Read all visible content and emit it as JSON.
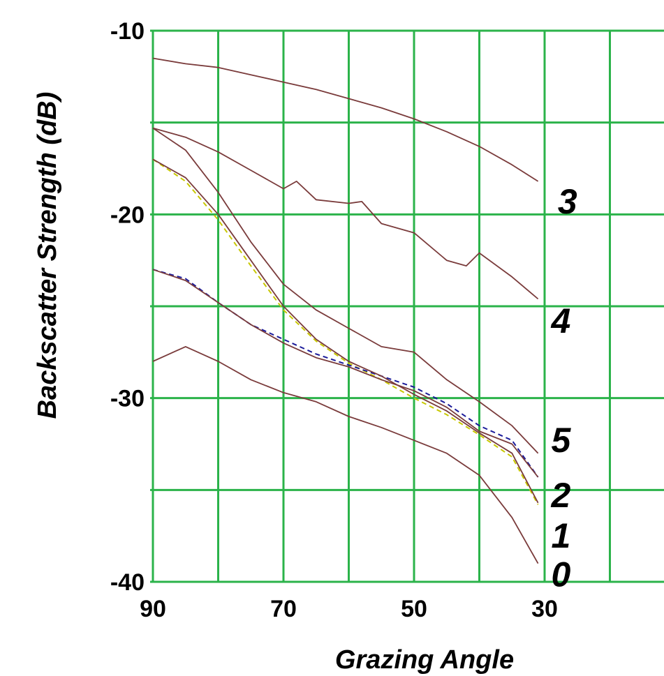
{
  "chart_data": {
    "type": "line",
    "title": "",
    "xlabel": "Grazing Angle",
    "ylabel": "Backscatter Strength (dB)",
    "xlim": [
      90,
      30
    ],
    "ylim": [
      -40,
      -10
    ],
    "x_ticks": [
      "90",
      "70",
      "50",
      "30"
    ],
    "y_ticks": [
      "-10",
      "-20",
      "-30",
      "-40"
    ],
    "grid": true,
    "colors": {
      "grid": "#2bb34a",
      "series": "#7a3b3b",
      "fit_yellow": "#c8c800",
      "fit_blue": "#1a1a9a"
    },
    "series": [
      {
        "name": "3",
        "x": [
          90,
          85,
          80,
          75,
          70,
          65,
          60,
          55,
          50,
          45,
          40,
          35,
          31
        ],
        "y": [
          -11.5,
          -11.8,
          -12.0,
          -12.4,
          -12.8,
          -13.2,
          -13.7,
          -14.2,
          -14.8,
          -15.5,
          -16.3,
          -17.3,
          -18.2
        ]
      },
      {
        "name": "4",
        "x": [
          90,
          85,
          80,
          75,
          70,
          68,
          65,
          60,
          58,
          55,
          50,
          45,
          42,
          40,
          35,
          31
        ],
        "y": [
          -15.3,
          -15.8,
          -16.6,
          -17.6,
          -18.6,
          -18.2,
          -19.2,
          -19.4,
          -19.3,
          -20.5,
          -21.0,
          -22.5,
          -22.8,
          -22.1,
          -23.4,
          -24.6
        ]
      },
      {
        "name": "5",
        "x": [
          90,
          85,
          80,
          75,
          70,
          65,
          60,
          55,
          50,
          45,
          40,
          35,
          31
        ],
        "y": [
          -15.3,
          -16.5,
          -18.8,
          -21.5,
          -23.8,
          -25.2,
          -26.2,
          -27.2,
          -27.5,
          -29.0,
          -30.2,
          -31.5,
          -33.0
        ]
      },
      {
        "name": "2",
        "x": [
          90,
          85,
          80,
          75,
          70,
          65,
          60,
          55,
          50,
          45,
          40,
          35,
          31
        ],
        "y": [
          -23.0,
          -23.6,
          -24.8,
          -26.0,
          -27.0,
          -27.8,
          -28.3,
          -29.0,
          -29.6,
          -30.5,
          -31.8,
          -32.5,
          -34.3
        ]
      },
      {
        "name": "1",
        "x": [
          90,
          85,
          80,
          75,
          70,
          65,
          60,
          55,
          50,
          45,
          40,
          35,
          31
        ],
        "y": [
          -17.0,
          -18.0,
          -20.0,
          -22.5,
          -25.0,
          -26.8,
          -28.0,
          -28.8,
          -29.8,
          -30.7,
          -31.9,
          -33.0,
          -35.7
        ]
      },
      {
        "name": "0",
        "x": [
          90,
          85,
          80,
          75,
          70,
          65,
          60,
          55,
          50,
          45,
          40,
          35,
          31
        ],
        "y": [
          -28.0,
          -27.2,
          -28.0,
          -29.0,
          -29.7,
          -30.2,
          -31.0,
          -31.6,
          -32.3,
          -33.0,
          -34.2,
          -36.5,
          -39.0
        ]
      }
    ],
    "fits": [
      {
        "color": "fit_yellow",
        "x": [
          90,
          85,
          80,
          75,
          70,
          65,
          60,
          55,
          50,
          45,
          40,
          35,
          31
        ],
        "y": [
          -17.0,
          -18.2,
          -20.3,
          -22.8,
          -25.2,
          -26.9,
          -28.1,
          -29.0,
          -30.0,
          -30.9,
          -32.0,
          -33.2,
          -35.8
        ]
      },
      {
        "color": "fit_blue",
        "x": [
          90,
          85,
          80,
          75,
          70,
          65,
          60,
          55,
          50,
          45,
          40,
          35,
          31
        ],
        "y": [
          -23.0,
          -23.5,
          -24.8,
          -26.0,
          -26.8,
          -27.6,
          -28.2,
          -28.8,
          -29.4,
          -30.3,
          -31.5,
          -32.3,
          -34.3
        ]
      }
    ],
    "labels": [
      {
        "text": "3",
        "x": 26.5,
        "y": -19.3
      },
      {
        "text": "4",
        "x": 27.5,
        "y": -25.8
      },
      {
        "text": "5",
        "x": 27.5,
        "y": -32.3
      },
      {
        "text": "2",
        "x": 27.5,
        "y": -35.3
      },
      {
        "text": "1",
        "x": 27.5,
        "y": -37.5
      },
      {
        "text": "0",
        "x": 27.5,
        "y": -39.6
      }
    ]
  }
}
